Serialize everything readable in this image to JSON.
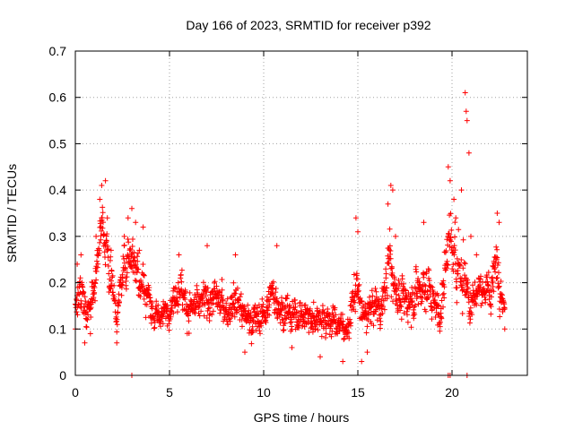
{
  "chart_data": {
    "type": "scatter",
    "title": "Day 166 of 2023, SRMTID for receiver p392",
    "xlabel": "GPS time / hours",
    "ylabel": "SRMTID / TECUs",
    "xlim": [
      0,
      24
    ],
    "ylim": [
      0,
      0.7
    ],
    "x_ticks": [
      0,
      5,
      10,
      15,
      20
    ],
    "y_ticks": [
      0,
      0.1,
      0.2,
      0.3,
      0.4,
      0.5,
      0.6,
      0.7
    ],
    "x_tick_labels": [
      "0",
      "5",
      "10",
      "15",
      "20"
    ],
    "y_tick_labels": [
      "0",
      "0.1",
      "0.2",
      "0.3",
      "0.4",
      "0.5",
      "0.6",
      "0.7"
    ],
    "grid": true,
    "marker": "+",
    "series": [
      {
        "name": "SRMTID",
        "color": "#ff0000",
        "trend": [
          [
            0.0,
            0.16,
            0.04
          ],
          [
            0.3,
            0.19,
            0.05
          ],
          [
            0.6,
            0.12,
            0.03
          ],
          [
            1.0,
            0.2,
            0.05
          ],
          [
            1.4,
            0.33,
            0.05
          ],
          [
            1.8,
            0.24,
            0.06
          ],
          [
            2.2,
            0.13,
            0.03
          ],
          [
            2.6,
            0.24,
            0.05
          ],
          [
            3.0,
            0.27,
            0.06
          ],
          [
            3.4,
            0.22,
            0.06
          ],
          [
            3.8,
            0.18,
            0.06
          ],
          [
            4.2,
            0.12,
            0.03
          ],
          [
            4.6,
            0.13,
            0.03
          ],
          [
            5.0,
            0.14,
            0.03
          ],
          [
            5.5,
            0.2,
            0.05
          ],
          [
            6.0,
            0.14,
            0.04
          ],
          [
            6.5,
            0.15,
            0.04
          ],
          [
            7.0,
            0.16,
            0.05
          ],
          [
            7.5,
            0.17,
            0.04
          ],
          [
            8.0,
            0.14,
            0.04
          ],
          [
            8.5,
            0.17,
            0.05
          ],
          [
            9.0,
            0.13,
            0.04
          ],
          [
            9.5,
            0.12,
            0.04
          ],
          [
            10.0,
            0.13,
            0.04
          ],
          [
            10.5,
            0.18,
            0.05
          ],
          [
            11.0,
            0.14,
            0.04
          ],
          [
            11.5,
            0.13,
            0.04
          ],
          [
            12.0,
            0.13,
            0.04
          ],
          [
            12.5,
            0.12,
            0.04
          ],
          [
            13.0,
            0.13,
            0.04
          ],
          [
            13.5,
            0.12,
            0.04
          ],
          [
            14.0,
            0.11,
            0.03
          ],
          [
            14.5,
            0.1,
            0.03
          ],
          [
            14.9,
            0.2,
            0.06
          ],
          [
            15.3,
            0.12,
            0.04
          ],
          [
            15.8,
            0.15,
            0.04
          ],
          [
            16.3,
            0.15,
            0.04
          ],
          [
            16.7,
            0.25,
            0.08
          ],
          [
            17.1,
            0.17,
            0.04
          ],
          [
            17.6,
            0.16,
            0.05
          ],
          [
            18.1,
            0.18,
            0.05
          ],
          [
            18.6,
            0.2,
            0.06
          ],
          [
            19.0,
            0.16,
            0.05
          ],
          [
            19.4,
            0.13,
            0.04
          ],
          [
            19.8,
            0.3,
            0.08
          ],
          [
            20.2,
            0.24,
            0.06
          ],
          [
            20.6,
            0.22,
            0.08
          ],
          [
            21.0,
            0.16,
            0.06
          ],
          [
            21.5,
            0.19,
            0.03
          ],
          [
            22.0,
            0.18,
            0.04
          ],
          [
            22.4,
            0.25,
            0.06
          ],
          [
            22.8,
            0.13,
            0.02
          ]
        ],
        "notable_points": [
          [
            0.0,
            0.1
          ],
          [
            0.1,
            0.24
          ],
          [
            0.3,
            0.26
          ],
          [
            0.5,
            0.07
          ],
          [
            0.8,
            0.09
          ],
          [
            1.1,
            0.3
          ],
          [
            1.3,
            0.38
          ],
          [
            1.4,
            0.41
          ],
          [
            1.6,
            0.42
          ],
          [
            1.7,
            0.34
          ],
          [
            1.9,
            0.27
          ],
          [
            2.2,
            0.07
          ],
          [
            2.6,
            0.3
          ],
          [
            2.8,
            0.34
          ],
          [
            3.0,
            0.36
          ],
          [
            3.2,
            0.33
          ],
          [
            3.4,
            0.27
          ],
          [
            3.6,
            0.32
          ],
          [
            4.0,
            0.16
          ],
          [
            5.5,
            0.26
          ],
          [
            7.0,
            0.28
          ],
          [
            8.5,
            0.26
          ],
          [
            9.0,
            0.05
          ],
          [
            10.7,
            0.28
          ],
          [
            11.5,
            0.06
          ],
          [
            13.0,
            0.04
          ],
          [
            14.2,
            0.03
          ],
          [
            14.9,
            0.34
          ],
          [
            15.0,
            0.31
          ],
          [
            15.2,
            0.03
          ],
          [
            15.5,
            0.05
          ],
          [
            16.6,
            0.37
          ],
          [
            16.75,
            0.41
          ],
          [
            16.85,
            0.4
          ],
          [
            17.0,
            0.3
          ],
          [
            18.5,
            0.33
          ],
          [
            19.8,
            0.45
          ],
          [
            19.9,
            0.42
          ],
          [
            20.1,
            0.38
          ],
          [
            20.2,
            0.34
          ],
          [
            20.5,
            0.4
          ],
          [
            20.7,
            0.61
          ],
          [
            20.75,
            0.57
          ],
          [
            20.8,
            0.55
          ],
          [
            20.9,
            0.48
          ],
          [
            21.0,
            0.3
          ],
          [
            21.3,
            0.26
          ],
          [
            22.4,
            0.35
          ],
          [
            22.5,
            0.33
          ],
          [
            22.8,
            0.1
          ]
        ],
        "zero_points": [
          3.0,
          19.8,
          19.9,
          20.8
        ],
        "approximate_point_count": 1700
      }
    ]
  }
}
